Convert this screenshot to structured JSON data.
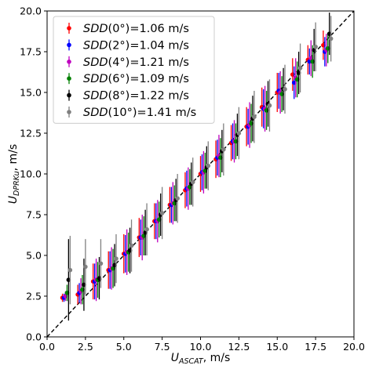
{
  "chart_data": {
    "type": "scatter",
    "title": "",
    "xlabel": {
      "main": "U",
      "sub": "ASCAT",
      "unit": ", m/s"
    },
    "ylabel": {
      "main": "U",
      "sub": "DPRKu",
      "unit": ", m/s"
    },
    "xlim": [
      0,
      20
    ],
    "ylim": [
      0,
      20
    ],
    "x_ticks": [
      "0.0",
      "2.5",
      "5.0",
      "7.5",
      "10.0",
      "12.5",
      "15.0",
      "17.5",
      "20.0"
    ],
    "y_ticks": [
      "0.0",
      "2.5",
      "5.0",
      "7.5",
      "10.0",
      "12.5",
      "15.0",
      "17.5",
      "20.0"
    ],
    "grid": false,
    "legend_position": "top-left",
    "reference_line": {
      "style": "dashed",
      "color": "#000000",
      "from": [
        0,
        0
      ],
      "to": [
        20,
        20
      ]
    },
    "x_bins": [
      1.0,
      2.0,
      3.0,
      4.0,
      5.0,
      6.0,
      7.0,
      8.0,
      9.0,
      10.0,
      11.0,
      12.0,
      13.0,
      14.0,
      15.0,
      16.0,
      17.0,
      18.0
    ],
    "series": [
      {
        "legend": {
          "prefix": "SDD",
          "angle": "(0°)",
          "value": "=1.06 m/s"
        },
        "color": "#ff0000",
        "x_offset": 0.0,
        "y": [
          2.4,
          2.6,
          3.4,
          4.1,
          5.1,
          6.1,
          7.1,
          8.1,
          9.0,
          10.0,
          10.9,
          11.9,
          12.9,
          14.1,
          15.0,
          16.1,
          17.0,
          17.9
        ],
        "err": [
          0.25,
          0.6,
          1.1,
          1.15,
          1.2,
          1.2,
          1.1,
          1.1,
          1.1,
          1.1,
          1.15,
          1.1,
          1.2,
          1.2,
          1.2,
          1.0,
          0.9,
          0.9
        ]
      },
      {
        "legend": {
          "prefix": "SDD",
          "angle": "(2°)",
          "value": "=1.04 m/s"
        },
        "color": "#0000ff",
        "x_offset": 0.1,
        "y": [
          2.4,
          2.7,
          3.4,
          4.1,
          5.1,
          6.1,
          7.1,
          8.1,
          9.1,
          10.1,
          11.0,
          12.0,
          12.9,
          14.0,
          15.1,
          15.6,
          16.9,
          17.5
        ],
        "err": [
          0.25,
          0.6,
          1.1,
          1.15,
          1.15,
          1.1,
          1.1,
          1.1,
          1.1,
          1.1,
          1.1,
          1.1,
          1.1,
          1.2,
          1.1,
          1.0,
          0.8,
          0.9
        ]
      },
      {
        "legend": {
          "prefix": "SDD",
          "angle": "(4°)",
          "value": "=1.21 m/s"
        },
        "color": "#bf00bf",
        "x_offset": 0.2,
        "y": [
          2.5,
          2.8,
          3.5,
          4.2,
          5.2,
          6.1,
          7.1,
          8.2,
          9.1,
          10.1,
          11.1,
          12.0,
          13.0,
          14.0,
          15.0,
          15.9,
          17.1,
          17.6
        ],
        "err": [
          0.3,
          0.8,
          1.3,
          1.3,
          1.4,
          1.4,
          1.3,
          1.3,
          1.3,
          1.3,
          1.3,
          1.3,
          1.4,
          1.4,
          1.3,
          1.2,
          1.1,
          1.0
        ]
      },
      {
        "legend": {
          "prefix": "SDD",
          "angle": "(6°)",
          "value": "=1.09 m/s"
        },
        "color": "#008000",
        "x_offset": 0.3,
        "y": [
          2.7,
          2.9,
          3.5,
          4.2,
          5.2,
          6.2,
          7.2,
          8.2,
          9.2,
          10.2,
          11.0,
          12.0,
          13.1,
          13.9,
          14.9,
          15.8,
          16.9,
          17.7
        ],
        "err": [
          0.5,
          0.9,
          1.1,
          1.2,
          1.2,
          1.2,
          1.1,
          1.1,
          1.1,
          1.1,
          1.2,
          1.1,
          1.2,
          1.2,
          1.1,
          1.1,
          1.0,
          0.9
        ]
      },
      {
        "legend": {
          "prefix": "SDD",
          "angle": "(8°)",
          "value": "=1.22 m/s"
        },
        "color": "#000000",
        "x_offset": 0.4,
        "y": [
          3.5,
          3.2,
          3.6,
          4.4,
          5.3,
          6.4,
          7.5,
          8.4,
          9.4,
          10.4,
          11.4,
          12.4,
          13.4,
          14.3,
          15.2,
          16.2,
          17.6,
          18.6
        ],
        "err": [
          2.5,
          1.6,
          1.3,
          1.3,
          1.4,
          1.4,
          1.3,
          1.3,
          1.3,
          1.3,
          1.3,
          1.3,
          1.4,
          1.4,
          1.3,
          1.3,
          1.3,
          1.3
        ]
      },
      {
        "legend": {
          "prefix": "SDD",
          "angle": "(10°)",
          "value": "=1.41 m/s"
        },
        "color": "#808080",
        "x_offset": 0.5,
        "y": [
          4.1,
          4.3,
          4.5,
          4.8,
          5.6,
          6.6,
          7.6,
          8.5,
          9.5,
          10.5,
          11.5,
          12.5,
          13.5,
          14.2,
          15.2,
          16.5,
          17.8,
          18.3
        ],
        "err": [
          2.1,
          1.7,
          1.5,
          1.5,
          1.6,
          1.6,
          1.6,
          1.5,
          1.5,
          1.5,
          1.6,
          1.6,
          1.6,
          1.6,
          1.5,
          1.5,
          1.5,
          1.4
        ]
      }
    ]
  }
}
